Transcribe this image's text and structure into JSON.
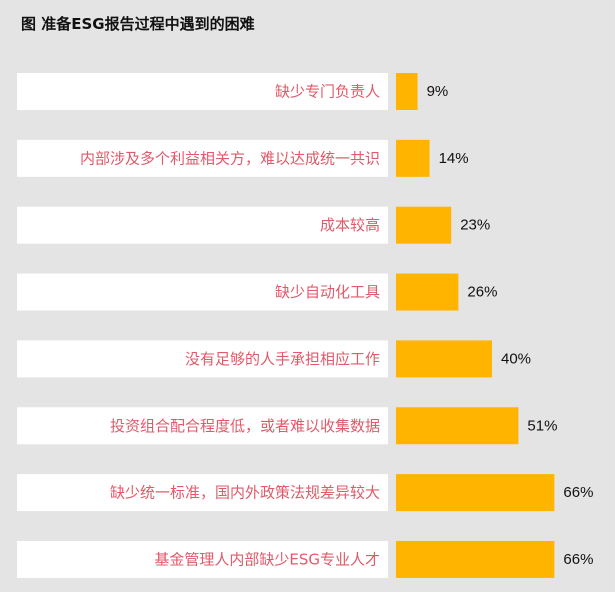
{
  "title": "图 准备ESG报告过程中遇到的困难",
  "colors": {
    "background": "#e4e4e4",
    "label_box": "#ffffff",
    "label_text": "#e05a69",
    "bar": "#ffb500",
    "value_text": "#111111"
  },
  "chart_data": {
    "type": "bar",
    "orientation": "horizontal",
    "title": "图 准备ESG报告过程中遇到的困难",
    "categories": [
      "缺少专门负责人",
      "内部涉及多个利益相关方，难以达成统一共识",
      "成本较高",
      "缺少自动化工具",
      "没有足够的人手承担相应工作",
      "投资组合配合程度低，或者难以收集数据",
      "缺少统一标准，国内外政策法规差异较大",
      "基金管理人内部缺少ESG专业人才"
    ],
    "values": [
      9,
      14,
      23,
      26,
      40,
      51,
      66,
      66
    ],
    "value_labels": [
      "9%",
      "14%",
      "23%",
      "26%",
      "40%",
      "51%",
      "66%",
      "66%"
    ],
    "unit": "%",
    "xlim": [
      0,
      100
    ],
    "grid": false,
    "legend": "none"
  }
}
